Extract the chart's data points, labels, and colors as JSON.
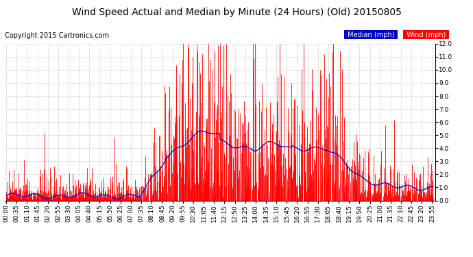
{
  "title": "Wind Speed Actual and Median by Minute (24 Hours) (Old) 20150805",
  "copyright": "Copyright 2015 Cartronics.com",
  "legend_median_label": "Median (mph)",
  "legend_wind_label": "Wind (mph)",
  "legend_median_bg": "#0000cc",
  "legend_wind_bg": "#ff0000",
  "ylim": [
    0.0,
    12.0
  ],
  "yticks": [
    0.0,
    1.0,
    2.0,
    3.0,
    4.0,
    5.0,
    6.0,
    7.0,
    8.0,
    9.0,
    10.0,
    11.0,
    12.0
  ],
  "background_color": "#ffffff",
  "plot_bg_color": "#ffffff",
  "grid_color": "#c8c8c8",
  "title_fontsize": 10,
  "copyright_fontsize": 7,
  "tick_fontsize": 6.5,
  "legend_fontsize": 7,
  "wind_color": "#ff0000",
  "median_color": "#0000cc",
  "minutes": 1440
}
